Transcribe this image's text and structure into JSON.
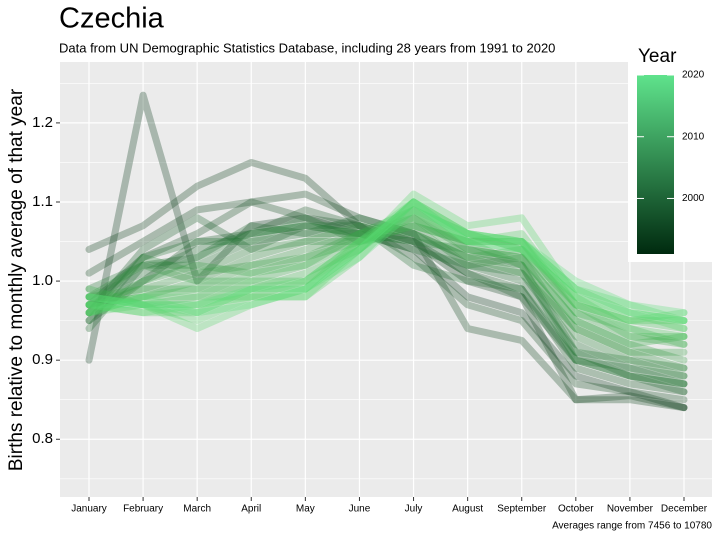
{
  "chart_data": {
    "type": "line",
    "title": "Czechia",
    "subtitle": "Data from UN Demographic Statistics Database, including 28 years from 1991 to 2020",
    "ylabel": "Births relative to monthly average of that year",
    "caption": "Averages range from 7456 to 10780",
    "categories": [
      "January",
      "February",
      "March",
      "April",
      "May",
      "June",
      "July",
      "August",
      "September",
      "October",
      "November",
      "December"
    ],
    "ylim": [
      0.727,
      1.277
    ],
    "yticks": [
      0.8,
      0.9,
      {
        "value": 1,
        "label": "1.0"
      },
      1.1,
      1.2
    ],
    "y_minor_grid": [
      0.75,
      0.85,
      0.95,
      1.05,
      1.15,
      1.25
    ],
    "grid": true,
    "colorbar": {
      "title": "Year",
      "lim": [
        1991,
        2020
      ],
      "ticks": [
        2000,
        2010,
        2020
      ],
      "colors": [
        "#002a0f",
        "#5fe38c"
      ]
    },
    "series": [
      {
        "color": "#0d3b1e",
        "values": [
          0.9,
          1.235,
          1.0,
          1.07,
          1.08,
          1.06,
          1.04,
          0.98,
          0.96,
          0.88,
          0.86,
          0.84
        ]
      },
      {
        "color": "#10421f",
        "values": [
          1.04,
          1.07,
          1.12,
          1.15,
          1.13,
          1.07,
          1.05,
          1.0,
          0.98,
          0.85,
          0.855,
          0.84
        ]
      },
      {
        "color": "#134a22",
        "values": [
          1.01,
          1.05,
          1.09,
          1.1,
          1.11,
          1.08,
          1.06,
          0.94,
          0.925,
          0.85,
          0.85,
          0.84
        ]
      },
      {
        "color": "#165125",
        "values": [
          0.97,
          1.03,
          1.06,
          1.1,
          1.08,
          1.07,
          1.03,
          0.97,
          0.95,
          0.87,
          0.86,
          0.85
        ]
      },
      {
        "color": "#195828",
        "values": [
          0.95,
          1.0,
          1.05,
          1.06,
          1.09,
          1.07,
          1.05,
          1.01,
          0.99,
          0.89,
          0.87,
          0.86
        ]
      },
      {
        "color": "#1c5f2b",
        "values": [
          0.96,
          1.04,
          1.08,
          1.04,
          1.07,
          1.06,
          1.05,
          1.01,
          0.98,
          0.9,
          0.88,
          0.87
        ]
      },
      {
        "color": "#1f662e",
        "values": [
          0.94,
          1.02,
          1.03,
          1.07,
          1.06,
          1.08,
          1.06,
          1.02,
          1.0,
          0.91,
          0.88,
          0.86
        ]
      },
      {
        "color": "#226d31",
        "values": [
          0.98,
          1.01,
          1.04,
          1.06,
          1.07,
          1.07,
          1.02,
          1.0,
          0.99,
          0.9,
          0.89,
          0.88
        ]
      },
      {
        "color": "#257434",
        "values": [
          0.95,
          1.03,
          1.05,
          1.05,
          1.06,
          1.06,
          1.04,
          1.02,
          1.01,
          0.92,
          0.89,
          0.87
        ]
      },
      {
        "color": "#287b37",
        "values": [
          0.99,
          1.02,
          1.02,
          1.05,
          1.08,
          1.05,
          1.06,
          1.03,
          1.02,
          0.91,
          0.9,
          0.89
        ]
      },
      {
        "color": "#2b823a",
        "values": [
          0.97,
          1.0,
          1.03,
          1.06,
          1.07,
          1.06,
          1.05,
          1.04,
          1.02,
          0.9,
          0.88,
          0.87
        ]
      },
      {
        "color": "#2e893d",
        "values": [
          0.96,
          1.03,
          1.01,
          1.04,
          1.05,
          1.05,
          1.07,
          1.02,
          1.03,
          0.93,
          0.9,
          0.88
        ]
      },
      {
        "color": "#319040",
        "values": [
          0.98,
          1.02,
          1.0,
          1.03,
          1.05,
          1.07,
          1.06,
          1.03,
          1.01,
          0.94,
          0.91,
          0.89
        ]
      },
      {
        "color": "#349743",
        "values": [
          0.97,
          0.99,
          1.01,
          1.02,
          1.04,
          1.06,
          1.08,
          1.04,
          1.03,
          0.95,
          0.92,
          0.9
        ]
      },
      {
        "color": "#379e46",
        "values": [
          0.96,
          1.0,
          1.02,
          1.01,
          1.03,
          1.06,
          1.07,
          1.05,
          1.02,
          0.94,
          0.91,
          0.91
        ]
      },
      {
        "color": "#3aa549",
        "values": [
          0.98,
          0.99,
          0.99,
          1.02,
          1.03,
          1.05,
          1.08,
          1.03,
          1.04,
          0.96,
          0.93,
          0.92
        ]
      },
      {
        "color": "#3dac4c",
        "values": [
          0.97,
          0.98,
          1.0,
          1.0,
          1.02,
          1.06,
          1.09,
          1.04,
          1.03,
          0.95,
          0.92,
          0.93
        ]
      },
      {
        "color": "#40b34f",
        "values": [
          0.99,
          0.97,
          0.98,
          1.01,
          1.02,
          1.05,
          1.07,
          1.05,
          1.05,
          0.96,
          0.94,
          0.92
        ]
      },
      {
        "color": "#43b952",
        "values": [
          0.96,
          0.98,
          0.99,
          0.99,
          1.01,
          1.04,
          1.09,
          1.06,
          1.04,
          0.97,
          0.93,
          0.93
        ]
      },
      {
        "color": "#46bf56",
        "values": [
          0.98,
          0.97,
          0.97,
          1.0,
          1.0,
          1.05,
          1.08,
          1.05,
          1.05,
          0.97,
          0.95,
          0.94
        ]
      },
      {
        "color": "#49c55a",
        "values": [
          0.97,
          0.98,
          0.98,
          0.98,
          1.0,
          1.04,
          1.1,
          1.06,
          1.04,
          0.98,
          0.94,
          0.93
        ]
      },
      {
        "color": "#4ccb5e",
        "values": [
          0.97,
          0.96,
          0.96,
          0.99,
          0.99,
          1.05,
          1.09,
          1.05,
          1.06,
          0.97,
          0.95,
          0.95
        ]
      },
      {
        "color": "#4fd062",
        "values": [
          0.96,
          0.97,
          0.95,
          0.98,
          0.98,
          1.03,
          1.1,
          1.06,
          1.05,
          0.99,
          0.96,
          0.94
        ]
      },
      {
        "color": "#52d466",
        "values": [
          0.98,
          0.97,
          0.94,
          0.97,
          0.99,
          1.04,
          1.11,
          1.07,
          1.08,
          0.98,
          0.95,
          0.96
        ]
      },
      {
        "color": "#55d86b",
        "values": [
          0.97,
          0.96,
          0.97,
          0.98,
          0.98,
          1.04,
          1.1,
          1.06,
          1.05,
          0.99,
          0.97,
          0.95
        ]
      },
      {
        "color": "#58db70",
        "values": [
          0.96,
          0.98,
          0.96,
          0.99,
          1.0,
          1.05,
          1.1,
          1.05,
          1.04,
          0.98,
          0.96,
          0.95
        ]
      },
      {
        "color": "#5bdd76",
        "values": [
          0.97,
          0.97,
          0.96,
          0.97,
          0.99,
          1.03,
          1.09,
          1.06,
          1.05,
          1.0,
          0.97,
          0.96
        ]
      },
      {
        "color": "#5edf7c",
        "values": [
          0.98,
          0.97,
          0.97,
          0.99,
          0.99,
          1.04,
          1.1,
          1.05,
          1.04,
          0.99,
          0.96,
          0.95
        ]
      }
    ]
  }
}
